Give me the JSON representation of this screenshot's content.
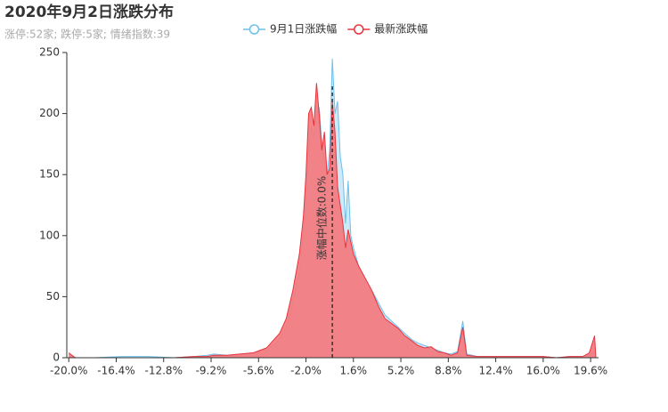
{
  "chart_data": {
    "type": "area",
    "title": "2020年9月2日涨跌分布",
    "subtitle": "涨停:52家; 跌停:5家; 情绪指数:39",
    "x": [
      -20,
      -19.5,
      -18,
      -16,
      -14,
      -12,
      -10.5,
      -9.5,
      -9,
      -8,
      -7,
      -6,
      -5,
      -4.5,
      -4,
      -3.5,
      -3,
      -2.5,
      -2.2,
      -2,
      -1.8,
      -1.6,
      -1.4,
      -1.2,
      -1,
      -0.8,
      -0.6,
      -0.4,
      -0.2,
      0,
      0.2,
      0.4,
      0.6,
      0.8,
      1,
      1.2,
      1.4,
      1.6,
      2,
      2.5,
      3,
      3.5,
      4,
      4.5,
      5,
      5.5,
      6,
      6.5,
      7,
      7.5,
      8,
      8.5,
      9,
      9.5,
      9.9,
      10.2,
      11,
      12,
      13,
      14,
      15,
      16,
      17,
      18,
      19,
      19.5,
      19.9,
      20
    ],
    "series": [
      {
        "name": "9月1日涨跌幅",
        "color": "#6cc0ea",
        "fill": "#cdeaf8",
        "values": [
          3,
          0,
          0,
          1,
          1,
          0,
          1,
          2,
          3,
          2,
          3,
          4,
          6,
          10,
          15,
          25,
          45,
          70,
          100,
          130,
          170,
          190,
          180,
          200,
          205,
          175,
          160,
          150,
          170,
          245,
          200,
          210,
          165,
          150,
          110,
          145,
          100,
          90,
          75,
          65,
          55,
          45,
          35,
          30,
          25,
          20,
          15,
          12,
          10,
          8,
          6,
          4,
          3,
          5,
          30,
          3,
          1,
          1,
          1,
          1,
          1,
          1,
          0,
          1,
          1,
          2,
          5,
          0
        ]
      },
      {
        "name": "最新涨跌幅",
        "color": "#e8353d",
        "fill": "#f47a7e",
        "values": [
          4,
          0,
          0,
          0,
          0,
          0,
          1,
          1,
          2,
          2,
          3,
          4,
          8,
          14,
          20,
          32,
          55,
          85,
          115,
          150,
          200,
          205,
          190,
          225,
          200,
          170,
          185,
          150,
          155,
          210,
          185,
          140,
          125,
          110,
          90,
          105,
          95,
          85,
          75,
          65,
          55,
          42,
          32,
          28,
          24,
          18,
          14,
          10,
          8,
          9,
          5,
          4,
          2,
          4,
          25,
          2,
          1,
          1,
          1,
          1,
          1,
          1,
          0,
          1,
          1,
          4,
          18,
          0
        ]
      }
    ],
    "median": {
      "value": 0,
      "label": "涨幅中位数:0.0%"
    },
    "xlim": [
      -20.15,
      20.2
    ],
    "xticks": [
      {
        "value": -20,
        "label": "-20.0%"
      },
      {
        "value": -16.4,
        "label": "-16.4%"
      },
      {
        "value": -12.8,
        "label": "-12.8%"
      },
      {
        "value": -9.2,
        "label": "-9.2%"
      },
      {
        "value": -5.6,
        "label": "-5.6%"
      },
      {
        "value": -2,
        "label": "-2.0%"
      },
      {
        "value": 1.6,
        "label": "1.6%"
      },
      {
        "value": 5.2,
        "label": "5.2%"
      },
      {
        "value": 8.8,
        "label": "8.8%"
      },
      {
        "value": 12.4,
        "label": "12.4%"
      },
      {
        "value": 16,
        "label": "16.0%"
      },
      {
        "value": 19.6,
        "label": "19.6%"
      }
    ],
    "ylim": [
      0,
      250
    ],
    "yticks": [
      0,
      50,
      100,
      150,
      200,
      250
    ]
  }
}
